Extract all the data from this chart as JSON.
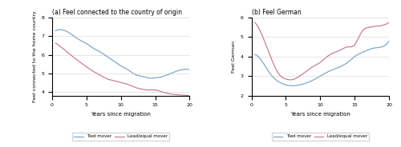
{
  "title_a": "(a) Feel connected to the country of origin",
  "title_b": "(b) Feel German",
  "ylabel_a": "Feel connected to the home country",
  "ylabel_b": "Feel German",
  "xlabel": "Years since migration",
  "legend_tied": "Tied mover",
  "legend_lead": "Lead/equal mover",
  "color_tied": "#7fa8c9",
  "color_lead": "#c97f8f",
  "xlim_a": [
    0,
    20
  ],
  "ylim_a": [
    3.8,
    8.0
  ],
  "yticks_a": [
    4,
    5,
    6,
    7,
    8
  ],
  "xlim_b": [
    0,
    20
  ],
  "ylim_b": [
    2,
    6
  ],
  "yticks_b": [
    2,
    3,
    4,
    5,
    6
  ],
  "xticks": [
    0,
    5,
    10,
    15,
    20
  ],
  "panel_a_tied_x": [
    0.5,
    1,
    2,
    3,
    4,
    5,
    6,
    7,
    8,
    9,
    10,
    11,
    12,
    13,
    14,
    15,
    16,
    17,
    18,
    19,
    20
  ],
  "panel_a_tied_y": [
    7.3,
    7.35,
    7.28,
    7.05,
    6.8,
    6.6,
    6.35,
    6.15,
    5.9,
    5.65,
    5.4,
    5.2,
    4.95,
    4.85,
    4.75,
    4.75,
    4.82,
    4.95,
    5.1,
    5.2,
    5.2
  ],
  "panel_a_lead_x": [
    0.5,
    1,
    2,
    3,
    4,
    5,
    6,
    7,
    8,
    9,
    10,
    11,
    12,
    13,
    14,
    15,
    16,
    17,
    18,
    19,
    20
  ],
  "panel_a_lead_y": [
    6.62,
    6.5,
    6.2,
    5.9,
    5.62,
    5.35,
    5.1,
    4.9,
    4.7,
    4.6,
    4.5,
    4.4,
    4.25,
    4.15,
    4.1,
    4.1,
    4.0,
    3.9,
    3.85,
    3.82,
    3.8
  ],
  "panel_b_tied_x": [
    0.5,
    1,
    2,
    3,
    4,
    5,
    6,
    7,
    8,
    9,
    10,
    11,
    12,
    13,
    14,
    15,
    16,
    17,
    18,
    19,
    20
  ],
  "panel_b_tied_y": [
    4.1,
    4.0,
    3.5,
    3.0,
    2.7,
    2.55,
    2.5,
    2.55,
    2.65,
    2.8,
    3.0,
    3.2,
    3.35,
    3.5,
    3.7,
    4.0,
    4.2,
    4.35,
    4.45,
    4.5,
    4.8
  ],
  "panel_b_lead_x": [
    0.5,
    1,
    2,
    3,
    4,
    5,
    6,
    7,
    8,
    9,
    10,
    11,
    12,
    13,
    14,
    15,
    16,
    17,
    18,
    19,
    20
  ],
  "panel_b_lead_y": [
    5.75,
    5.5,
    4.7,
    3.8,
    3.1,
    2.85,
    2.82,
    3.0,
    3.25,
    3.5,
    3.7,
    4.0,
    4.2,
    4.35,
    4.5,
    4.6,
    5.25,
    5.5,
    5.55,
    5.6,
    5.75
  ]
}
